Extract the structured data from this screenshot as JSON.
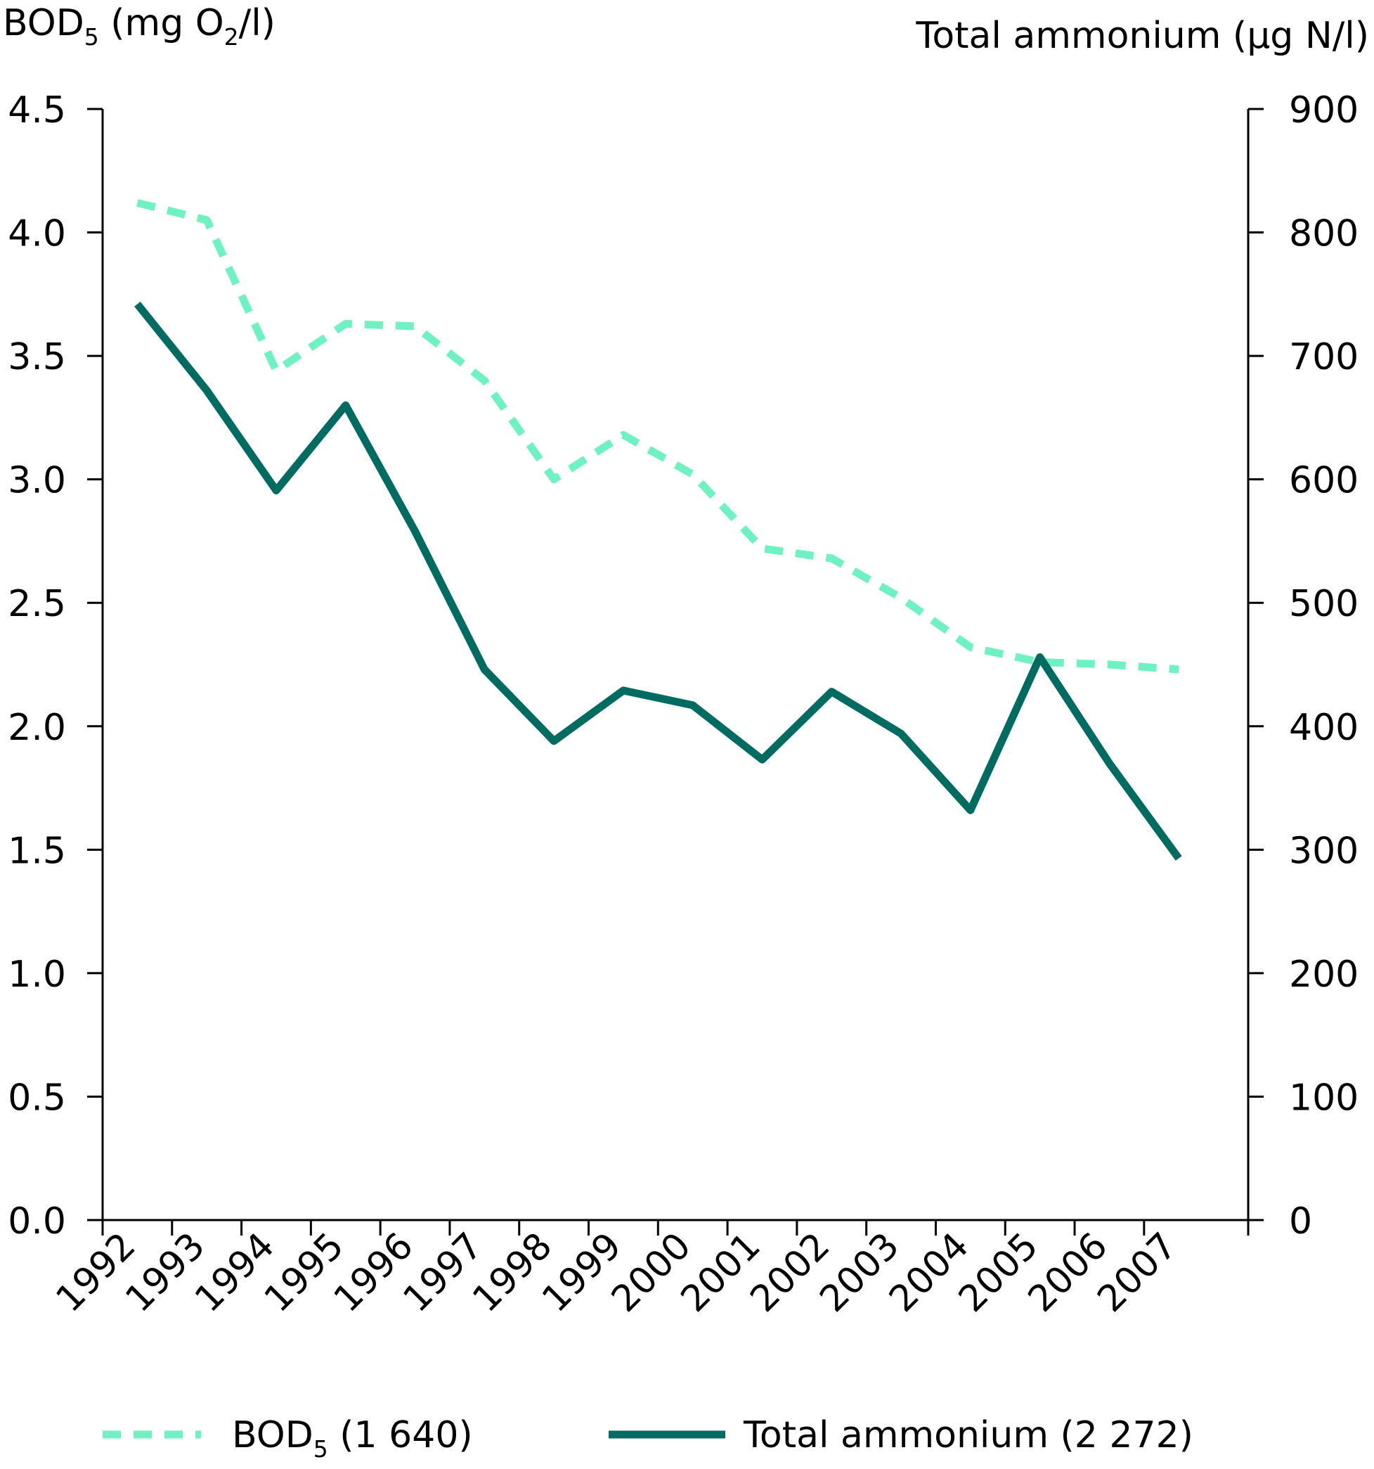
{
  "chart_data": {
    "type": "line",
    "x": [
      "1992",
      "1993",
      "1994",
      "1995",
      "1996",
      "1997",
      "1998",
      "1999",
      "2000",
      "2001",
      "2002",
      "2003",
      "2004",
      "2005",
      "2006",
      "2007"
    ],
    "left_axis": {
      "label_main": "BOD",
      "label_sub": "5",
      "label_unit_prefix": " (mg O",
      "label_unit_sub": "2",
      "label_unit_suffix": "/l)",
      "range": [
        0,
        4.5
      ],
      "ticks": [
        "0.0",
        "0.5",
        "1.0",
        "1.5",
        "2.0",
        "2.5",
        "3.0",
        "3.5",
        "4.0",
        "4.5"
      ]
    },
    "right_axis": {
      "label": "Total ammonium (µg N/l)",
      "range": [
        0,
        900
      ],
      "ticks": [
        "0",
        "100",
        "200",
        "300",
        "400",
        "500",
        "600",
        "700",
        "800",
        "900"
      ]
    },
    "series": [
      {
        "key": "bod",
        "name_main": "BOD",
        "name_sub": "5",
        "name_suffix": " (1 640)",
        "axis": "left",
        "style": "dashed",
        "color": "#6ff2c2",
        "values": [
          4.12,
          4.05,
          3.44,
          3.63,
          3.62,
          3.4,
          3.0,
          3.18,
          3.02,
          2.72,
          2.68,
          2.52,
          2.32,
          2.26,
          2.25,
          2.23
        ]
      },
      {
        "key": "nh4",
        "name_main": "Total ammonium (2 272)",
        "axis": "right",
        "style": "solid",
        "color": "#006b60",
        "values": [
          742,
          672,
          591,
          660,
          558,
          446,
          388,
          429,
          417,
          373,
          428,
          394,
          332,
          456,
          370,
          293
        ]
      }
    ],
    "legend_position": "bottom",
    "grid": false
  }
}
